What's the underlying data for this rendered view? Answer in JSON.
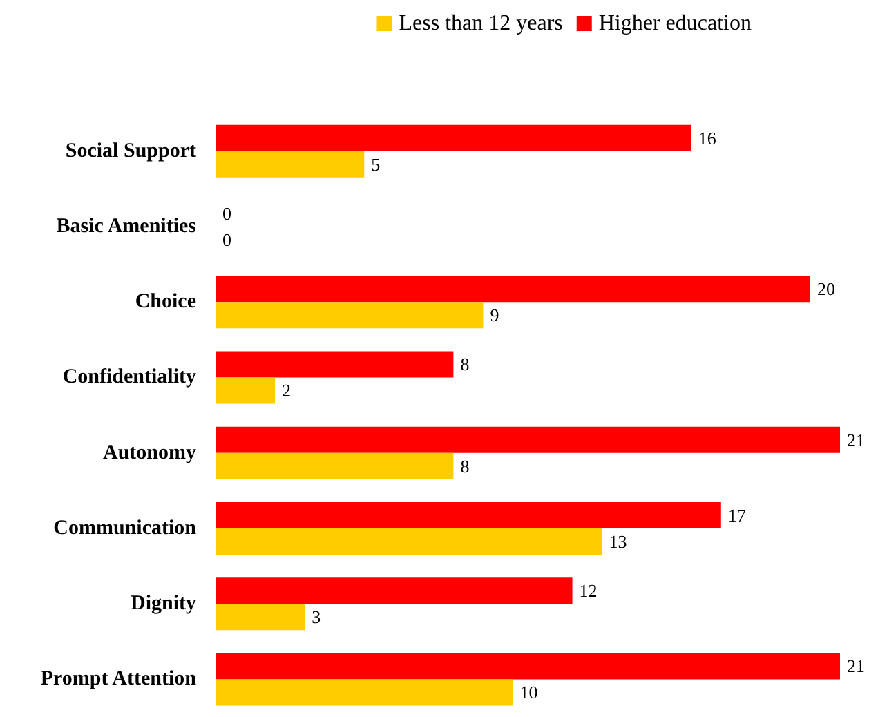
{
  "chart_data": {
    "type": "bar",
    "orientation": "horizontal",
    "data_labels": true,
    "legend": "top right",
    "grid": false,
    "tick_labels": "y",
    "categories": [
      "Social Support",
      "Basic Amenities",
      "Choice",
      "Confidentiality",
      "Autonomy",
      "Communication",
      "Dignity",
      "Prompt Attention"
    ],
    "series": [
      {
        "name": "Less than 12 years",
        "color": "#ffcc00",
        "values": [
          5,
          0,
          9,
          2,
          8,
          13,
          3,
          10
        ]
      },
      {
        "name": "Higher education",
        "color": "#ff0000",
        "values": [
          16,
          0,
          20,
          8,
          21,
          17,
          12,
          21
        ]
      }
    ]
  }
}
